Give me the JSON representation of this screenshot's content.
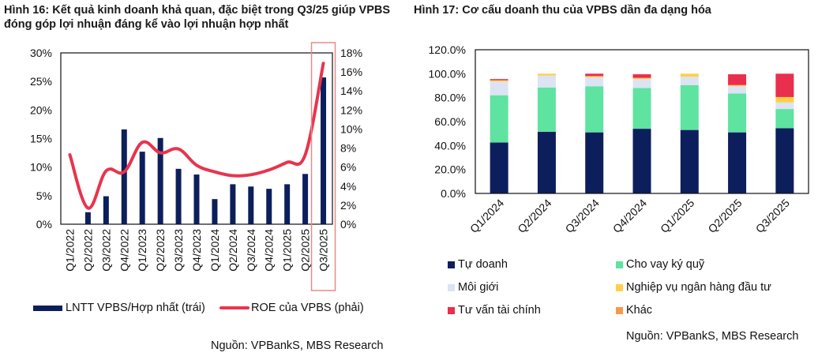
{
  "figures": [
    {
      "title_prefix": "Hình 16:",
      "title_text": " Kết quả kinh doanh khả quan, đặc biệt trong Q3/25 giúp VPBS đóng góp lợi nhuận đáng kể vào lợi nhuận hợp nhất",
      "source": "Nguồn: VPBankS, MBS Research"
    },
    {
      "title_prefix": "Hình 17:",
      "title_text": " Cơ cấu doanh thu của VPBS dần đa dạng hóa",
      "source": "Nguồn: VPBankS, MBS Research"
    }
  ],
  "chart_data": [
    {
      "type": "bar+line",
      "title": "Kết quả kinh doanh khả quan, đặc biệt trong Q3/25 giúp VPBS đóng góp lợi nhuận đáng kể vào lợi nhuận hợp nhất",
      "categories": [
        "Q1/2022",
        "Q2/2022",
        "Q3/2022",
        "Q4/2022",
        "Q1/2023",
        "Q2/2023",
        "Q3/2023",
        "Q4/2023",
        "Q1/2024",
        "Q2/2024",
        "Q3/2024",
        "Q4/2024",
        "Q1/2025",
        "Q2/2025",
        "Q3/2025"
      ],
      "series": [
        {
          "name": "LNTT VPBS/Hợp nhất (trái)",
          "type": "bar",
          "axis": "left",
          "color": "#0c1f5c",
          "values": [
            0.0,
            2.1,
            4.9,
            16.6,
            12.7,
            15.1,
            9.7,
            8.7,
            4.4,
            7.0,
            6.6,
            6.2,
            7.0,
            8.8,
            25.7
          ]
        },
        {
          "name": "ROE của VPBS (phải)",
          "type": "line",
          "axis": "right",
          "color": "#e8344e",
          "values": [
            7.3,
            1.7,
            5.6,
            5.5,
            8.6,
            7.5,
            7.9,
            6.2,
            5.5,
            5.1,
            5.2,
            5.7,
            6.5,
            7.3,
            16.9
          ]
        }
      ],
      "left_axis": {
        "ylim": [
          0,
          30
        ],
        "ticks": [
          "0%",
          "5%",
          "10%",
          "15%",
          "20%",
          "25%",
          "30%"
        ]
      },
      "right_axis": {
        "ylim": [
          0,
          18
        ],
        "ticks": [
          "0%",
          "2%",
          "4%",
          "6%",
          "8%",
          "10%",
          "12%",
          "14%",
          "16%",
          "18%"
        ]
      },
      "highlight": {
        "category": "Q3/2025",
        "color": "#e88a8a"
      },
      "legend": {
        "placement": "bottom"
      },
      "grid": false
    },
    {
      "type": "bar",
      "stacked": true,
      "title": "Cơ cấu doanh thu của VPBS dần đa dạng hóa",
      "categories": [
        "Q1/2024",
        "Q2/2024",
        "Q3/2024",
        "Q4/2024",
        "Q1/2025",
        "Q2/2025",
        "Q3/2025"
      ],
      "series": [
        {
          "name": "Tự doanh",
          "color": "#0c1f5c",
          "values": [
            42.5,
            51.5,
            51.0,
            54.0,
            53.0,
            51.0,
            54.5
          ]
        },
        {
          "name": "Cho vay ký quỹ",
          "color": "#5ee3a1",
          "values": [
            39.5,
            37.0,
            38.5,
            34.0,
            37.5,
            32.5,
            16.0
          ]
        },
        {
          "name": "Môi giới",
          "color": "#dce3f2",
          "values": [
            11.5,
            10.0,
            7.5,
            7.5,
            7.0,
            6.0,
            5.5
          ]
        },
        {
          "name": "Nghiệp vụ ngân hàng đầu tư",
          "color": "#ffd046",
          "values": [
            1.0,
            1.5,
            1.0,
            1.0,
            2.5,
            1.0,
            4.5
          ]
        },
        {
          "name": "Tư vấn tài chính",
          "color": "#ea2e4d",
          "values": [
            1.0,
            0.0,
            2.0,
            3.0,
            0.0,
            9.0,
            19.5
          ]
        },
        {
          "name": "Khác",
          "color": "#f59a4a",
          "values": [
            0.0,
            0.0,
            0.0,
            0.0,
            0.0,
            0.0,
            0.0
          ]
        }
      ],
      "ylim": [
        0,
        120
      ],
      "ticks": [
        "0.0%",
        "20.0%",
        "40.0%",
        "60.0%",
        "80.0%",
        "100.0%",
        "120.0%"
      ],
      "legend": {
        "placement": "bottom"
      },
      "grid": false
    }
  ]
}
